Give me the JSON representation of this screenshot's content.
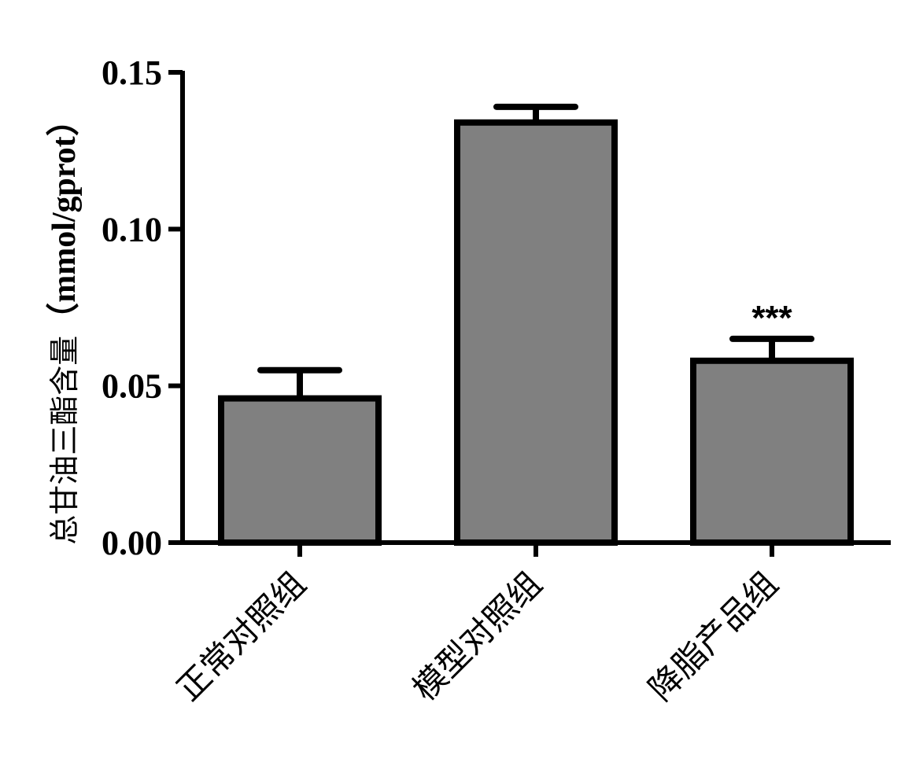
{
  "chart_data": {
    "type": "bar",
    "categories": [
      "正常对照组",
      "模型对照组",
      "降脂产品组"
    ],
    "values": [
      0.046,
      0.134,
      0.058
    ],
    "errors": [
      0.009,
      0.005,
      0.007
    ],
    "annotations": [
      "",
      "",
      "***"
    ],
    "ylabel_main": "总甘油三酯含量",
    "ylabel_unit": "（mmol/gprot）",
    "ylim": [
      0,
      0.15
    ],
    "yticks": [
      "0.00",
      "0.05",
      "0.10",
      "0.15"
    ],
    "ytick_values": [
      0,
      0.05,
      0.1,
      0.15
    ],
    "bar_color": "#808080",
    "stroke_color": "#000000",
    "grid": false
  }
}
